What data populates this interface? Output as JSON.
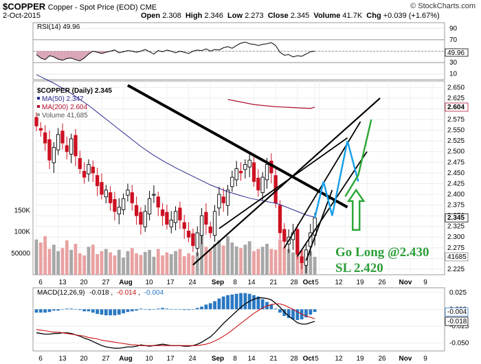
{
  "header": {
    "symbol": "$COPPER",
    "description": "Copper - Spot Price (EOD) CME",
    "brand": "© StockCharts.com",
    "date": "2-Oct-2015",
    "open_label": "Open",
    "open": "2.308",
    "high_label": "High",
    "high": "2.346",
    "low_label": "Low",
    "low": "2.273",
    "close_label": "Close",
    "close": "2.345",
    "volume_label": "Volume",
    "volume": "41.7K",
    "chg_label": "Chg",
    "chg": "+0.039 (+1.67%)"
  },
  "colors": {
    "up": "#000000",
    "down": "#cc1122",
    "ma50": "#2a2a8f",
    "ma200": "#b01030",
    "volume_up": "#a7a7a7",
    "volume_down": "#e9a1a1",
    "rsi": "#000000",
    "macd": "#000000",
    "signal": "#cc1111",
    "histogram": "#2a78c2",
    "trendline": "#000000",
    "target_blue": "#1aa0e8",
    "target_green": "#2ea83a"
  },
  "chart_data": [
    {
      "type": "line",
      "title": "RSI(14)",
      "legend": [
        "RSI(14) 49.96"
      ],
      "y_ticks": [
        "90",
        "70",
        "50",
        "30",
        "10"
      ],
      "ylim": [
        0,
        100
      ],
      "last_value_label": "49.96",
      "reference_levels": [
        70,
        30
      ],
      "values": [
        44,
        38,
        35,
        42,
        40,
        36,
        34,
        37,
        38,
        35,
        33,
        38,
        45,
        50,
        48,
        46,
        48,
        50,
        52,
        47,
        49,
        51,
        50,
        48,
        50,
        53,
        49,
        45,
        51,
        49,
        52,
        50,
        47,
        50,
        48,
        46,
        50,
        52,
        51,
        54,
        50,
        53,
        52,
        56,
        58,
        55,
        60,
        64,
        66,
        63,
        62,
        60,
        62,
        63,
        65,
        60,
        48,
        43,
        44,
        40,
        42,
        41,
        45,
        49,
        50
      ]
    },
    {
      "type": "bar",
      "title": "$COPPER (Daily)",
      "legend": [
        "$COPPER (Daily) 2.345",
        "MA(50) 2.347",
        "MA(200) 2.604",
        "Volume 41,685"
      ],
      "x_tick_labels": [
        "6",
        "13",
        "20",
        "27",
        "Aug",
        "10",
        "17",
        "24",
        "Sep",
        "8",
        "14",
        "21",
        "28",
        "Oct",
        "5",
        "12",
        "19",
        "26",
        "Nov",
        "9"
      ],
      "y_ticks": [
        "2.650",
        "2.625",
        "2.600",
        "2.575",
        "2.550",
        "2.525",
        "2.500",
        "2.475",
        "2.450",
        "2.425",
        "2.400",
        "2.375",
        "2.350",
        "2.325",
        "2.300",
        "2.275",
        "2.250",
        "2.225"
      ],
      "ylim": [
        2.212,
        2.665
      ],
      "price_labels": [
        "2.604",
        "2.345"
      ],
      "volume_ticks": [
        "150K",
        "100K",
        "50000"
      ],
      "volume_last_label": "41685",
      "closes": [
        2.56,
        2.55,
        2.52,
        2.48,
        2.51,
        2.54,
        2.52,
        2.5,
        2.53,
        2.49,
        2.46,
        2.44,
        2.47,
        2.45,
        2.42,
        2.4,
        2.41,
        2.38,
        2.36,
        2.37,
        2.39,
        2.41,
        2.38,
        2.35,
        2.33,
        2.36,
        2.39,
        2.4,
        2.37,
        2.35,
        2.33,
        2.34,
        2.36,
        2.34,
        2.32,
        2.3,
        2.28,
        2.31,
        2.35,
        2.33,
        2.31,
        2.36,
        2.4,
        2.38,
        2.41,
        2.44,
        2.46,
        2.45,
        2.47,
        2.48,
        2.43,
        2.41,
        2.44,
        2.47,
        2.45,
        2.38,
        2.31,
        2.29,
        2.3,
        2.31,
        2.26,
        2.24,
        2.27,
        2.31,
        2.345
      ],
      "volumes": [
        82000,
        75000,
        90000,
        60000,
        70000,
        55000,
        62000,
        80000,
        58000,
        72000,
        50000,
        45000,
        65000,
        70000,
        48000,
        55000,
        60000,
        52000,
        45000,
        58000,
        40000,
        55000,
        62000,
        50000,
        46000,
        53000,
        58000,
        42000,
        60000,
        45000,
        52000,
        48000,
        55000,
        60000,
        43000,
        50000,
        45000,
        52000,
        95000,
        65000,
        58000,
        72000,
        80000,
        68000,
        90000,
        75000,
        66000,
        62000,
        70000,
        78000,
        55000,
        60000,
        65000,
        72000,
        60000,
        58000,
        82000,
        65000,
        60000,
        52000,
        70000,
        58000,
        48000,
        55000,
        41685
      ],
      "ma50": [
        2.68,
        2.675,
        2.67,
        2.665,
        2.66,
        2.654,
        2.648,
        2.642,
        2.636,
        2.629,
        2.622,
        2.615,
        2.608,
        2.6,
        2.592,
        2.584,
        2.576,
        2.568,
        2.56,
        2.552,
        2.544,
        2.536,
        2.528,
        2.52,
        2.512,
        2.505,
        2.498,
        2.491,
        2.485,
        2.479,
        2.473,
        2.468,
        2.462,
        2.457,
        2.452,
        2.447,
        2.442,
        2.437,
        2.432,
        2.427,
        2.422,
        2.418,
        2.414,
        2.41,
        2.406,
        2.403,
        2.4,
        2.397,
        2.394,
        2.391,
        2.389,
        2.387,
        2.385,
        2.383,
        2.381,
        2.379,
        2.376,
        2.372,
        2.368,
        2.364,
        2.36,
        2.356,
        2.352,
        2.349,
        2.347
      ],
      "ma200": [
        2.7,
        2.698,
        2.696,
        2.694,
        2.692,
        2.69,
        2.688,
        2.686,
        2.684,
        2.682,
        2.68,
        2.678,
        2.676,
        2.674,
        2.672,
        2.67,
        2.668,
        2.666,
        2.664,
        2.662,
        2.66,
        2.658,
        2.656,
        2.654,
        2.652,
        2.65,
        2.648,
        2.646,
        2.644,
        2.642,
        2.641,
        2.64,
        2.639,
        2.638,
        2.637,
        2.636,
        2.635,
        2.634,
        2.633,
        2.632,
        2.63,
        2.628,
        2.626,
        2.624,
        2.622,
        2.62,
        2.618,
        2.616,
        2.614,
        2.612,
        2.61,
        2.609,
        2.608,
        2.607,
        2.606,
        2.605,
        2.6045,
        2.604,
        2.6035,
        2.603,
        2.6025,
        2.602,
        2.6015,
        2.601,
        2.604
      ],
      "annotations": [
        "Go Long @2.430",
        "SL 2.420"
      ]
    },
    {
      "type": "line",
      "title": "MACD(12,26,9)",
      "legend": [
        "MACD(12,26,9)",
        "-0.018",
        "-0.014",
        "-0.004"
      ],
      "y_ticks": [
        "0.025",
        "0.000",
        "-0.025",
        "-0.050"
      ],
      "ylim": [
        -0.062,
        0.032
      ],
      "last_value_labels": [
        "-0.004",
        "-0.018"
      ],
      "macd": [
        -0.035,
        -0.036,
        -0.037,
        -0.037,
        -0.036,
        -0.036,
        -0.035,
        -0.035,
        -0.036,
        -0.038,
        -0.04,
        -0.043,
        -0.045,
        -0.048,
        -0.051,
        -0.054,
        -0.056,
        -0.057,
        -0.058,
        -0.058,
        -0.057,
        -0.056,
        -0.056,
        -0.055,
        -0.053,
        -0.054,
        -0.055,
        -0.054,
        -0.053,
        -0.052,
        -0.053,
        -0.054,
        -0.054,
        -0.054,
        -0.055,
        -0.055,
        -0.054,
        -0.052,
        -0.049,
        -0.045,
        -0.041,
        -0.035,
        -0.028,
        -0.021,
        -0.015,
        -0.009,
        -0.003,
        0.003,
        0.008,
        0.012,
        0.015,
        0.017,
        0.017,
        0.016,
        0.014,
        0.009,
        0.003,
        -0.004,
        -0.01,
        -0.015,
        -0.02,
        -0.022,
        -0.022,
        -0.02,
        -0.018
      ],
      "signal": [
        -0.03,
        -0.031,
        -0.032,
        -0.033,
        -0.034,
        -0.034,
        -0.035,
        -0.036,
        -0.037,
        -0.038,
        -0.039,
        -0.04,
        -0.042,
        -0.043,
        -0.044,
        -0.046,
        -0.047,
        -0.048,
        -0.049,
        -0.05,
        -0.051,
        -0.052,
        -0.053,
        -0.053,
        -0.054,
        -0.054,
        -0.054,
        -0.054,
        -0.054,
        -0.054,
        -0.054,
        -0.054,
        -0.054,
        -0.054,
        -0.054,
        -0.054,
        -0.054,
        -0.054,
        -0.053,
        -0.052,
        -0.05,
        -0.047,
        -0.044,
        -0.04,
        -0.036,
        -0.031,
        -0.026,
        -0.021,
        -0.016,
        -0.011,
        -0.006,
        -0.002,
        0.002,
        0.005,
        0.007,
        0.008,
        0.008,
        0.006,
        0.003,
        0.0,
        -0.004,
        -0.007,
        -0.01,
        -0.012,
        -0.014
      ],
      "histogram": [
        -0.005,
        -0.005,
        -0.005,
        -0.004,
        -0.002,
        -0.002,
        0.0,
        0.001,
        0.001,
        0.0,
        -0.001,
        -0.003,
        -0.003,
        -0.005,
        -0.007,
        -0.008,
        -0.009,
        -0.009,
        -0.009,
        -0.008,
        -0.006,
        -0.004,
        -0.003,
        -0.002,
        0.001,
        0.0,
        -0.001,
        0.0,
        0.001,
        0.002,
        0.001,
        0.0,
        0.0,
        0.0,
        -0.001,
        -0.001,
        0.0,
        0.002,
        0.004,
        0.007,
        0.009,
        0.012,
        0.016,
        0.019,
        0.021,
        0.022,
        0.023,
        0.024,
        0.024,
        0.023,
        0.021,
        0.019,
        0.015,
        0.011,
        0.007,
        0.001,
        -0.005,
        -0.01,
        -0.013,
        -0.015,
        -0.016,
        -0.015,
        -0.012,
        -0.008,
        -0.004
      ]
    }
  ]
}
